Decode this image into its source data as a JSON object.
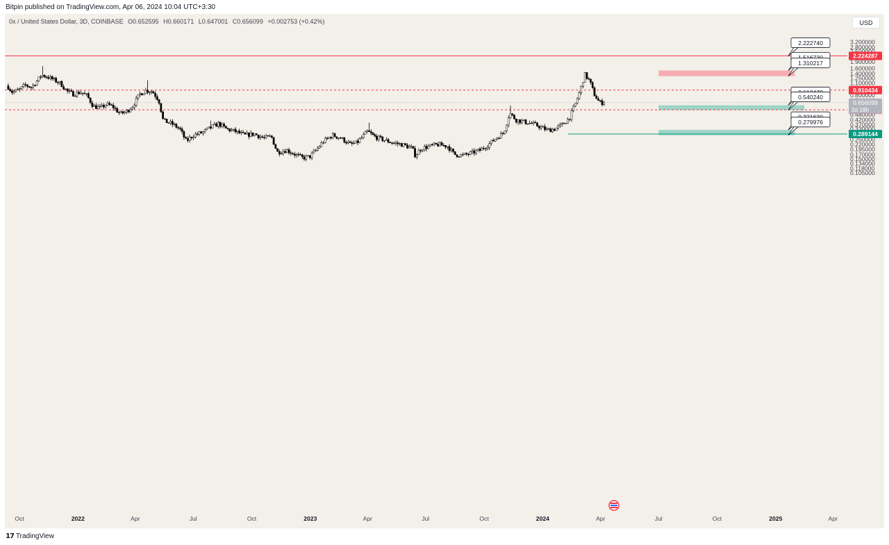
{
  "header": {
    "publisher": "Bitpin published on TradingView.com, Apr 06, 2024 10:04 UTC+3:30"
  },
  "legend": {
    "symbol": "0x / United States Dollar, 3D, COINBASE",
    "open": "O0.652595",
    "high": "H0.660171",
    "low": "L0.647001",
    "close": "C0.656099",
    "change": "+0.002753 (+0.42%)"
  },
  "currency_button": "USD",
  "footer": {
    "logo_mark": "17",
    "logo_text": "TradingView"
  },
  "colors": {
    "background": "#f3efe9",
    "bull_candle": "#ffffff",
    "bear_candle": "#000000",
    "resistance": "#f23645",
    "support": "#089981",
    "supply_zone": "#f7a9ae",
    "demand_zone": "#98d3c5"
  },
  "chart_data": {
    "type": "candlestick",
    "y_scale": "log",
    "ylim": [
      0.1,
      3.6
    ],
    "x_ticks": [
      {
        "label": "Oct",
        "date": "2021-10-01"
      },
      {
        "label": "2022",
        "date": "2022-01-01"
      },
      {
        "label": "Apr",
        "date": "2022-04-01"
      },
      {
        "label": "Jul",
        "date": "2022-07-01"
      },
      {
        "label": "Oct",
        "date": "2022-10-01"
      },
      {
        "label": "2023",
        "date": "2023-01-01"
      },
      {
        "label": "Apr",
        "date": "2023-04-01"
      },
      {
        "label": "Jul",
        "date": "2023-07-01"
      },
      {
        "label": "Oct",
        "date": "2023-10-01"
      },
      {
        "label": "2024",
        "date": "2024-01-01"
      },
      {
        "label": "Apr",
        "date": "2024-04-01"
      },
      {
        "label": "Jul",
        "date": "2024-07-01"
      },
      {
        "label": "Oct",
        "date": "2024-10-01"
      },
      {
        "label": "2025",
        "date": "2025-01-01"
      },
      {
        "label": "Apr",
        "date": "2025-04-01"
      }
    ],
    "y_ticks": [
      "3.200000",
      "2.800000",
      "2.500000",
      "1.900000",
      "1.600000",
      "1.400000",
      "1.250000",
      "1.100000",
      "0.950000",
      "0.800000",
      "0.700000",
      "0.480000",
      "0.420000",
      "0.370000",
      "0.330000",
      "0.250000",
      "0.220000",
      "0.195000",
      "0.170000",
      "0.150000",
      "0.134000",
      "0.118000",
      "0.105000"
    ],
    "price_path": [
      [
        "2021-09-12",
        1.02
      ],
      [
        "2021-09-20",
        0.86
      ],
      [
        "2021-10-01",
        0.92
      ],
      [
        "2021-10-10",
        1.04
      ],
      [
        "2021-10-20",
        0.98
      ],
      [
        "2021-10-28",
        1.14
      ],
      [
        "2021-11-05",
        1.35
      ],
      [
        "2021-11-15",
        1.28
      ],
      [
        "2021-11-25",
        1.18
      ],
      [
        "2021-12-05",
        1.08
      ],
      [
        "2021-12-15",
        0.88
      ],
      [
        "2021-12-25",
        0.82
      ],
      [
        "2022-01-05",
        0.86
      ],
      [
        "2022-01-15",
        0.79
      ],
      [
        "2022-01-25",
        0.6
      ],
      [
        "2022-02-05",
        0.57
      ],
      [
        "2022-02-15",
        0.63
      ],
      [
        "2022-02-25",
        0.59
      ],
      [
        "2022-03-08",
        0.49
      ],
      [
        "2022-03-18",
        0.52
      ],
      [
        "2022-03-28",
        0.6
      ],
      [
        "2022-04-08",
        0.82
      ],
      [
        "2022-04-18",
        0.9
      ],
      [
        "2022-04-28",
        0.88
      ],
      [
        "2022-05-08",
        0.7
      ],
      [
        "2022-05-15",
        0.41
      ],
      [
        "2022-05-28",
        0.38
      ],
      [
        "2022-06-10",
        0.33
      ],
      [
        "2022-06-20",
        0.24
      ],
      [
        "2022-07-01",
        0.28
      ],
      [
        "2022-07-15",
        0.3
      ],
      [
        "2022-07-28",
        0.34
      ],
      [
        "2022-08-10",
        0.38
      ],
      [
        "2022-08-22",
        0.33
      ],
      [
        "2022-09-05",
        0.31
      ],
      [
        "2022-09-20",
        0.28
      ],
      [
        "2022-10-05",
        0.29
      ],
      [
        "2022-10-20",
        0.26
      ],
      [
        "2022-11-01",
        0.27
      ],
      [
        "2022-11-10",
        0.18
      ],
      [
        "2022-11-25",
        0.19
      ],
      [
        "2022-12-08",
        0.17
      ],
      [
        "2022-12-20",
        0.155
      ],
      [
        "2022-12-31",
        0.16
      ],
      [
        "2023-01-10",
        0.19
      ],
      [
        "2023-01-22",
        0.24
      ],
      [
        "2023-02-05",
        0.28
      ],
      [
        "2023-02-18",
        0.26
      ],
      [
        "2023-03-05",
        0.22
      ],
      [
        "2023-03-15",
        0.23
      ],
      [
        "2023-04-01",
        0.31
      ],
      [
        "2023-04-12",
        0.27
      ],
      [
        "2023-04-25",
        0.25
      ],
      [
        "2023-05-10",
        0.23
      ],
      [
        "2023-05-25",
        0.22
      ],
      [
        "2023-06-10",
        0.2
      ],
      [
        "2023-06-15",
        0.165
      ],
      [
        "2023-06-25",
        0.2
      ],
      [
        "2023-07-08",
        0.21
      ],
      [
        "2023-07-20",
        0.22
      ],
      [
        "2023-08-05",
        0.21
      ],
      [
        "2023-08-15",
        0.17
      ],
      [
        "2023-08-28",
        0.165
      ],
      [
        "2023-09-10",
        0.175
      ],
      [
        "2023-09-25",
        0.19
      ],
      [
        "2023-10-08",
        0.22
      ],
      [
        "2023-10-20",
        0.26
      ],
      [
        "2023-11-01",
        0.3
      ],
      [
        "2023-11-10",
        0.5
      ],
      [
        "2023-11-20",
        0.42
      ],
      [
        "2023-12-01",
        0.4
      ],
      [
        "2023-12-15",
        0.38
      ],
      [
        "2023-12-28",
        0.35
      ],
      [
        "2024-01-08",
        0.32
      ],
      [
        "2024-01-20",
        0.33
      ],
      [
        "2024-02-01",
        0.37
      ],
      [
        "2024-02-12",
        0.44
      ],
      [
        "2024-02-22",
        0.65
      ],
      [
        "2024-03-01",
        0.95
      ],
      [
        "2024-03-07",
        1.38
      ],
      [
        "2024-03-15",
        1.15
      ],
      [
        "2024-03-22",
        0.82
      ],
      [
        "2024-03-30",
        0.66
      ],
      [
        "2024-04-06",
        0.656
      ]
    ],
    "extra_highs": [
      [
        "2021-11-05",
        1.7
      ],
      [
        "2022-04-18",
        1.18
      ],
      [
        "2022-07-28",
        0.41
      ],
      [
        "2023-04-01",
        0.39
      ],
      [
        "2023-11-10",
        0.61
      ],
      [
        "2024-03-07",
        1.45
      ]
    ],
    "horizontal_lines": [
      {
        "label": "2.224287",
        "value": 2.224287,
        "style": "solid",
        "color": "#f23645"
      },
      {
        "label": "0.910434",
        "value": 0.910434,
        "style": "dashed",
        "color": "#f23645"
      },
      {
        "label": "0.544708",
        "value": 0.544708,
        "style": "dashed",
        "color": "#f23645"
      },
      {
        "label": "0.289144",
        "value": 0.289144,
        "style": "solid",
        "color": "#089981",
        "start": "2024-02-10"
      }
    ],
    "last_price": {
      "label": "0.656099",
      "sublabel": "2d 18h",
      "value": 0.656099
    },
    "zones": [
      {
        "name": "supply",
        "top": 1.51673,
        "bottom": 1.310217,
        "start": "2024-07-01",
        "end": "2025-01-31",
        "color": "#f7a9ae"
      },
      {
        "name": "demand-1",
        "top": 0.61347,
        "bottom": 0.54024,
        "start": "2024-07-01",
        "end": "2025-02-15",
        "color": "#98d3c5"
      },
      {
        "name": "demand-2",
        "top": 0.32163,
        "bottom": 0.279976,
        "start": "2024-07-01",
        "end": "2025-01-31",
        "color": "#98d3c5"
      }
    ],
    "callouts": [
      {
        "label": "2.222740",
        "value": 2.22274,
        "x": "2025-01-01"
      },
      {
        "label": "1.516730",
        "value": 1.51673,
        "x": "2025-01-01"
      },
      {
        "label": "1.310217",
        "value": 1.310217,
        "x": "2025-01-01"
      },
      {
        "label": "0.613470",
        "value": 0.61347,
        "x": "2025-01-01"
      },
      {
        "label": "0.540240",
        "value": 0.54024,
        "x": "2025-01-01"
      },
      {
        "label": "0.321630",
        "value": 0.32163,
        "x": "2025-01-01"
      },
      {
        "label": "0.279976",
        "value": 0.279976,
        "x": "2025-01-01"
      }
    ]
  }
}
